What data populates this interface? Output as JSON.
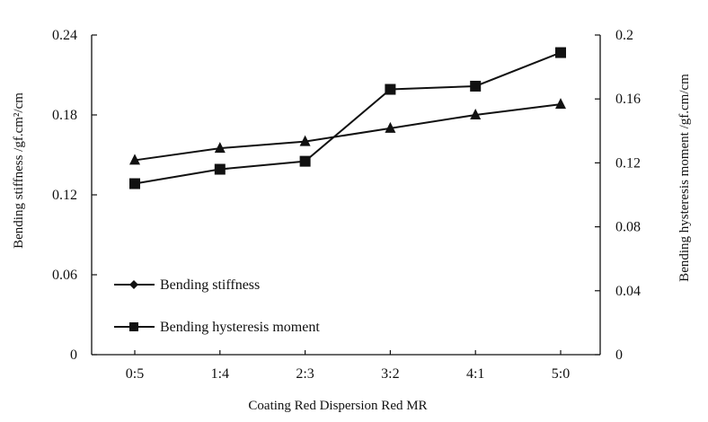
{
  "chart_data": {
    "type": "line",
    "title": "",
    "xlabel": "Coating Red Dispersion Red MR",
    "ylabel": "Bending stiffness /gf.cm²/cm",
    "y2label": "Bending hysteresis moment /gf.cm/cm",
    "categories": [
      "0:5",
      "1:4",
      "2:3",
      "3:2",
      "4:1",
      "5:0"
    ],
    "ylim": [
      0,
      0.24
    ],
    "yticks": [
      "0",
      "0.06",
      "0.12",
      "0.18",
      "0.24"
    ],
    "y2lim": [
      0,
      0.2
    ],
    "y2ticks": [
      "0",
      "0.04",
      "0.08",
      "0.12",
      "0.16",
      "0.2"
    ],
    "grid": false,
    "legend_position": "lower-left",
    "series": [
      {
        "name": "Bending stiffness",
        "axis": "left",
        "marker": "diamond",
        "legend_marker": "diamond",
        "plot_marker": "triangle",
        "values": [
          0.146,
          0.155,
          0.16,
          0.17,
          0.18,
          0.188
        ]
      },
      {
        "name": "Bending hysteresis moment",
        "axis": "right",
        "marker": "square",
        "values": [
          0.107,
          0.116,
          0.121,
          0.166,
          0.168,
          0.189
        ]
      }
    ],
    "colors": {
      "line": "#111111",
      "axis": "#111111"
    }
  }
}
